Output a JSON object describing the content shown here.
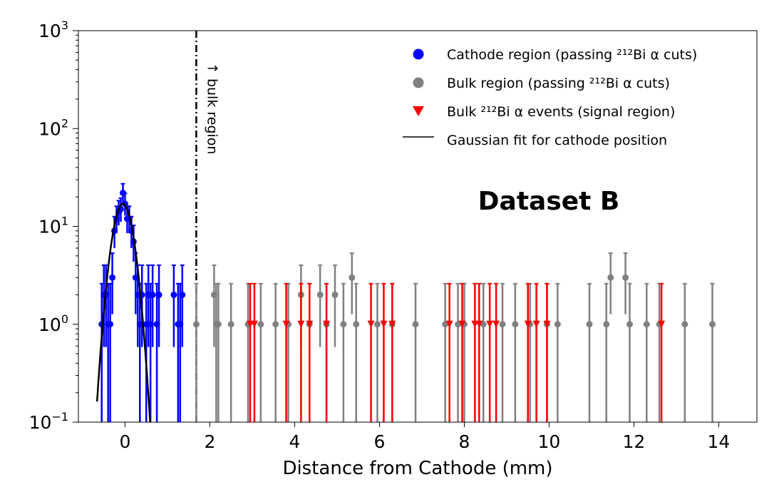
{
  "chart_data": {
    "type": "scatter",
    "xlabel": "Distance from Cathode (mm)",
    "ylabel": "",
    "yscale": "log",
    "xlim": [
      -1.1,
      14.9
    ],
    "ylim": [
      0.1,
      1000
    ],
    "x_ticks": [
      {
        "value": 0,
        "label": "0"
      },
      {
        "value": 2,
        "label": "2"
      },
      {
        "value": 4,
        "label": "4"
      },
      {
        "value": 6,
        "label": "6"
      },
      {
        "value": 8,
        "label": "8"
      },
      {
        "value": 10,
        "label": "10"
      },
      {
        "value": 12,
        "label": "12"
      },
      {
        "value": 14,
        "label": "14"
      }
    ],
    "y_ticks": [
      {
        "value": 0.1,
        "base": "10",
        "exp": "−1"
      },
      {
        "value": 1,
        "base": "10",
        "exp": "0"
      },
      {
        "value": 10,
        "base": "10",
        "exp": "1"
      },
      {
        "value": 100,
        "base": "10",
        "exp": "2"
      },
      {
        "value": 1000,
        "base": "10",
        "exp": "3"
      }
    ],
    "grid": false,
    "legend_position": "top-right",
    "annotation": "Dataset B",
    "vline": {
      "x": 1.68,
      "label": "↑ bulk region"
    },
    "legend": [
      {
        "marker": "circle",
        "color": "#0000ff",
        "text": "Cathode region (passing ²¹²Bi α cuts)"
      },
      {
        "marker": "circle",
        "color": "#808080",
        "text": "Bulk region (passing ²¹²Bi α cuts)"
      },
      {
        "marker": "triangle-down",
        "color": "#ff0000",
        "text": "Bulk ²¹²Bi α events (signal region)"
      },
      {
        "marker": "line",
        "color": "#000000",
        "text": "Gaussian fit for cathode position"
      }
    ],
    "series": [
      {
        "name": "Cathode region (passing ²¹²Bi α cuts)",
        "color": "#0000ff",
        "marker": "circle",
        "points": [
          {
            "x": -0.55,
            "y": 1
          },
          {
            "x": -0.5,
            "y": 2
          },
          {
            "x": -0.45,
            "y": 2
          },
          {
            "x": -0.4,
            "y": 1
          },
          {
            "x": -0.35,
            "y": 1
          },
          {
            "x": -0.3,
            "y": 3
          },
          {
            "x": -0.25,
            "y": 9
          },
          {
            "x": -0.2,
            "y": 12
          },
          {
            "x": -0.15,
            "y": 14
          },
          {
            "x": -0.1,
            "y": 15
          },
          {
            "x": -0.05,
            "y": 22
          },
          {
            "x": 0.0,
            "y": 17
          },
          {
            "x": 0.05,
            "y": 12
          },
          {
            "x": 0.1,
            "y": 12
          },
          {
            "x": 0.15,
            "y": 9
          },
          {
            "x": 0.2,
            "y": 7
          },
          {
            "x": 0.25,
            "y": 3
          },
          {
            "x": 0.3,
            "y": 2
          },
          {
            "x": 0.35,
            "y": 1
          },
          {
            "x": 0.4,
            "y": 2
          },
          {
            "x": 0.5,
            "y": 1
          },
          {
            "x": 0.55,
            "y": 2
          },
          {
            "x": 0.6,
            "y": 1
          },
          {
            "x": 0.65,
            "y": 2
          },
          {
            "x": 0.75,
            "y": 1
          },
          {
            "x": 0.8,
            "y": 2
          },
          {
            "x": 1.15,
            "y": 2
          },
          {
            "x": 1.25,
            "y": 1
          },
          {
            "x": 1.3,
            "y": 1
          },
          {
            "x": 1.35,
            "y": 2
          }
        ]
      },
      {
        "name": "Bulk region (passing ²¹²Bi α cuts)",
        "color": "#808080",
        "marker": "circle",
        "points": [
          {
            "x": 1.68,
            "y": 1
          },
          {
            "x": 2.1,
            "y": 2
          },
          {
            "x": 2.15,
            "y": 1
          },
          {
            "x": 2.2,
            "y": 1
          },
          {
            "x": 2.5,
            "y": 1
          },
          {
            "x": 2.9,
            "y": 1
          },
          {
            "x": 3.2,
            "y": 1
          },
          {
            "x": 3.55,
            "y": 1
          },
          {
            "x": 3.85,
            "y": 1
          },
          {
            "x": 4.15,
            "y": 2
          },
          {
            "x": 4.35,
            "y": 1
          },
          {
            "x": 4.6,
            "y": 2
          },
          {
            "x": 4.75,
            "y": 1
          },
          {
            "x": 4.95,
            "y": 2
          },
          {
            "x": 5.15,
            "y": 1
          },
          {
            "x": 5.35,
            "y": 3
          },
          {
            "x": 5.45,
            "y": 1
          },
          {
            "x": 5.95,
            "y": 1
          },
          {
            "x": 6.3,
            "y": 1
          },
          {
            "x": 6.85,
            "y": 1
          },
          {
            "x": 7.55,
            "y": 1
          },
          {
            "x": 7.85,
            "y": 1
          },
          {
            "x": 8.0,
            "y": 1
          },
          {
            "x": 8.45,
            "y": 1
          },
          {
            "x": 8.9,
            "y": 1
          },
          {
            "x": 9.2,
            "y": 1
          },
          {
            "x": 9.55,
            "y": 1
          },
          {
            "x": 9.95,
            "y": 1
          },
          {
            "x": 10.2,
            "y": 1
          },
          {
            "x": 10.95,
            "y": 1
          },
          {
            "x": 11.35,
            "y": 1
          },
          {
            "x": 11.45,
            "y": 3
          },
          {
            "x": 11.8,
            "y": 3
          },
          {
            "x": 11.9,
            "y": 1
          },
          {
            "x": 12.3,
            "y": 1
          },
          {
            "x": 12.6,
            "y": 1
          },
          {
            "x": 13.2,
            "y": 1
          },
          {
            "x": 13.85,
            "y": 1
          }
        ]
      },
      {
        "name": "Bulk ²¹²Bi α events (signal region)",
        "color": "#ff0000",
        "marker": "triangle-down",
        "points": [
          {
            "x": 2.95,
            "y": 1
          },
          {
            "x": 3.05,
            "y": 1
          },
          {
            "x": 3.8,
            "y": 1
          },
          {
            "x": 4.15,
            "y": 1
          },
          {
            "x": 4.35,
            "y": 1
          },
          {
            "x": 4.75,
            "y": 1
          },
          {
            "x": 5.8,
            "y": 1
          },
          {
            "x": 6.1,
            "y": 1
          },
          {
            "x": 6.3,
            "y": 1
          },
          {
            "x": 7.65,
            "y": 1
          },
          {
            "x": 7.95,
            "y": 1
          },
          {
            "x": 8.25,
            "y": 1
          },
          {
            "x": 8.35,
            "y": 1
          },
          {
            "x": 8.6,
            "y": 1
          },
          {
            "x": 8.75,
            "y": 1
          },
          {
            "x": 9.5,
            "y": 1
          },
          {
            "x": 9.7,
            "y": 1
          },
          {
            "x": 9.95,
            "y": 1
          },
          {
            "x": 12.65,
            "y": 1
          }
        ]
      },
      {
        "name": "Gaussian fit for cathode position",
        "color": "#000000",
        "type": "line",
        "fit": {
          "mean": -0.05,
          "sigma": 0.2,
          "amplitude": 17
        },
        "x_range": [
          -0.66,
          0.6
        ]
      }
    ]
  }
}
